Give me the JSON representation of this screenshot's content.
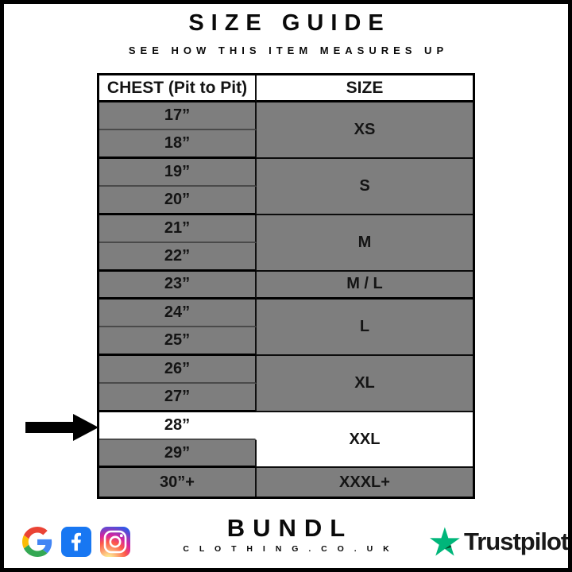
{
  "header": {
    "title": "SIZE GUIDE",
    "subtitle": "SEE HOW THIS ITEM MEASURES UP"
  },
  "size_table": {
    "columns": {
      "chest": "CHEST (Pit to Pit)",
      "size": "SIZE"
    },
    "groups": [
      {
        "size": "XS",
        "chest": [
          "17”",
          "18”"
        ],
        "highlighted": false,
        "highlighted_chest": []
      },
      {
        "size": "S",
        "chest": [
          "19”",
          "20”"
        ],
        "highlighted": false,
        "highlighted_chest": []
      },
      {
        "size": "M",
        "chest": [
          "21”",
          "22”"
        ],
        "highlighted": false,
        "highlighted_chest": []
      },
      {
        "size": "M / L",
        "chest": [
          "23”"
        ],
        "highlighted": false,
        "highlighted_chest": []
      },
      {
        "size": "L",
        "chest": [
          "24”",
          "25”"
        ],
        "highlighted": false,
        "highlighted_chest": []
      },
      {
        "size": "XL",
        "chest": [
          "26”",
          "27”"
        ],
        "highlighted": false,
        "highlighted_chest": []
      },
      {
        "size": "XXL",
        "chest": [
          "28”",
          "29”"
        ],
        "highlighted": true,
        "highlighted_chest": [
          "28”"
        ]
      },
      {
        "size": "XXXL+",
        "chest": [
          "30”+"
        ],
        "highlighted": false,
        "highlighted_chest": []
      }
    ]
  },
  "chart_data": {
    "type": "table",
    "title": "SIZE GUIDE",
    "subtitle": "SEE HOW THIS ITEM MEASURES UP",
    "columns": [
      "CHEST (Pit to Pit)",
      "SIZE"
    ],
    "rows": [
      [
        "17”",
        "XS"
      ],
      [
        "18”",
        "XS"
      ],
      [
        "19”",
        "S"
      ],
      [
        "20”",
        "S"
      ],
      [
        "21”",
        "M"
      ],
      [
        "22”",
        "M"
      ],
      [
        "23”",
        "M / L"
      ],
      [
        "24”",
        "L"
      ],
      [
        "25”",
        "L"
      ],
      [
        "26”",
        "XL"
      ],
      [
        "27”",
        "XL"
      ],
      [
        "28”",
        "XXL"
      ],
      [
        "29”",
        "XXL"
      ],
      [
        "30”+",
        "XXXL+"
      ]
    ],
    "highlighted_row": [
      "28”",
      "XXL"
    ],
    "annotation": "black arrow pointing at the 28” / XXL row"
  },
  "footer": {
    "brand_name": "BUNDL",
    "brand_domain": "C L O T H I N G . C O . U K",
    "social_icons": [
      "google",
      "facebook",
      "instagram"
    ],
    "trustpilot_label": "Trustpilot"
  },
  "colors": {
    "row_grey": "#7e7e7e",
    "highlight_white": "#ffffff",
    "border_black": "#000000",
    "trustpilot_green": "#00b67a",
    "trustpilot_dark_green": "#005128",
    "facebook_blue": "#1877f2",
    "google_blue": "#4285f4",
    "google_red": "#ea4335",
    "google_yellow": "#fbbc05",
    "google_green": "#34a853"
  }
}
